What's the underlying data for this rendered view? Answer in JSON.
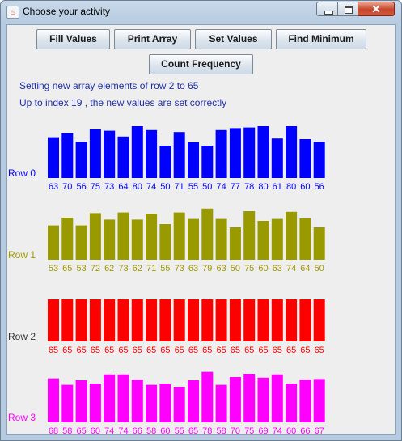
{
  "window": {
    "title": "Choose your activity",
    "close_glyph": "✕"
  },
  "buttons": {
    "fill": "Fill Values",
    "print": "Print Array",
    "set": "Set Values",
    "find_min": "Find Minimum",
    "count": "Count Frequency"
  },
  "messages": {
    "line1": "Setting new array elements of row 2 to 65",
    "line2": "Up to index 19 , the new values are set correctly"
  },
  "chart_data": {
    "type": "bar",
    "y_unit_max": 80,
    "rows": [
      {
        "label": "Row 0",
        "color": "#0000ff",
        "values": [
          63,
          70,
          56,
          75,
          73,
          64,
          80,
          74,
          50,
          71,
          55,
          50,
          74,
          77,
          78,
          80,
          61,
          80,
          60,
          56
        ]
      },
      {
        "label": "Row 1",
        "color": "#999900",
        "values": [
          53,
          65,
          53,
          72,
          62,
          73,
          62,
          71,
          55,
          73,
          63,
          79,
          63,
          50,
          75,
          60,
          63,
          74,
          64,
          50
        ]
      },
      {
        "label": "Row 2",
        "color": "#ff0000",
        "values": [
          65,
          65,
          65,
          65,
          65,
          65,
          65,
          65,
          65,
          65,
          65,
          65,
          65,
          65,
          65,
          65,
          65,
          65,
          65,
          65
        ]
      },
      {
        "label": "Row 3",
        "color": "#ff00ff",
        "values": [
          68,
          58,
          65,
          60,
          74,
          74,
          66,
          58,
          60,
          55,
          65,
          78,
          58,
          70,
          75,
          69,
          74,
          60,
          66,
          67
        ]
      }
    ]
  }
}
